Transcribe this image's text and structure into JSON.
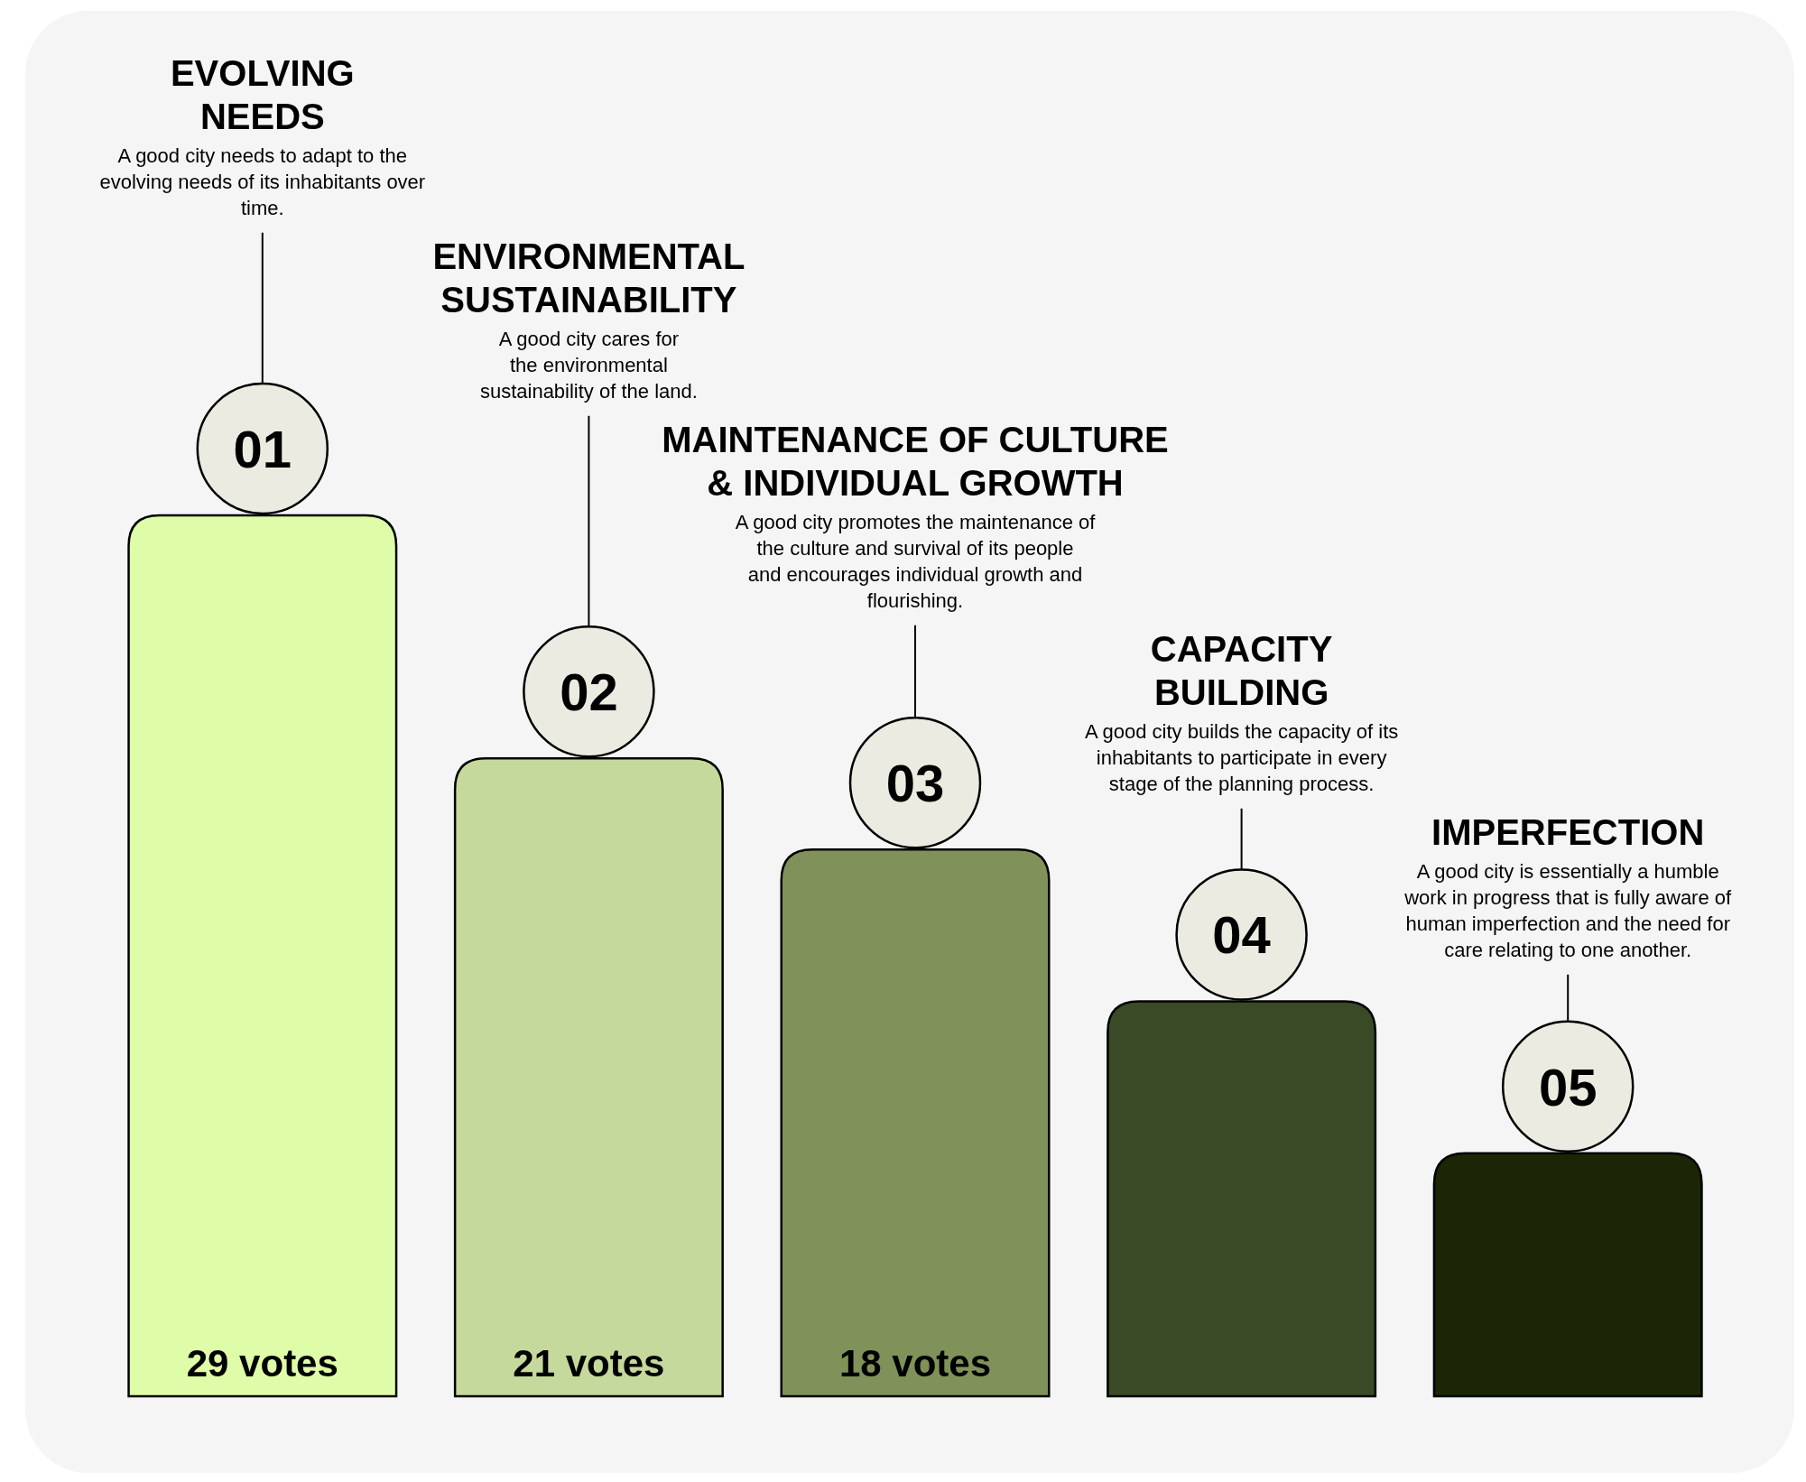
{
  "chart_data": {
    "type": "bar",
    "categories": [
      "01",
      "02",
      "03",
      "04",
      "05"
    ],
    "values": [
      29,
      21,
      18,
      13,
      8
    ],
    "colors": [
      "#dffca8",
      "#c6d99c",
      "#80925a",
      "#3a4a27",
      "#1b2606"
    ],
    "value_labels": [
      "29 votes",
      "21 votes",
      "18 votes",
      null,
      null
    ],
    "ylim": [
      0,
      29
    ],
    "annotations": [
      "EVOLVING\nNEEDS",
      "A good city needs to adapt to the\nevolving needs of its inhabitants over\ntime.",
      "ENVIRONMENTAL\nSUSTAINABILITY",
      "A good city cares for\nthe environmental\nsustainability of the land.",
      "MAINTENANCE OF CULTURE\n& INDIVIDUAL GROWTH",
      "A good city promotes the maintenance of\nthe culture and survival of its people\nand encourages individual growth and\nflourishing.",
      "CAPACITY\nBUILDING",
      "A good city builds the capacity of its\ninhabitants to participate in every\nstage of the planning process.",
      "IMPERFECTION",
      "A good city is essentially a humble\nwork in progress that is fully aware of\nhuman imperfection and the need for\ncare relating to one another."
    ]
  }
}
